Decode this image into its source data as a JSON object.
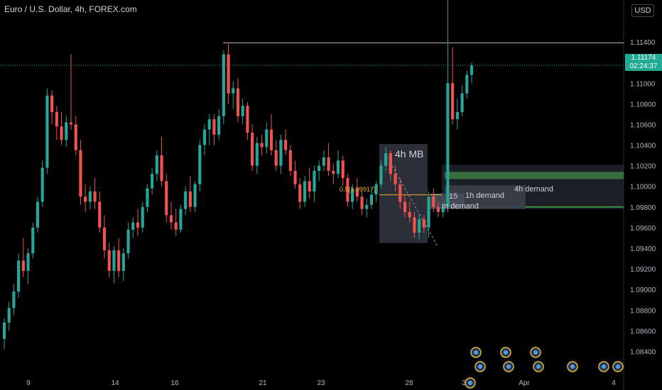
{
  "header": {
    "title": "Euro / U.S. Dollar, 4h, FOREX.com",
    "currency": "USD"
  },
  "last_price": {
    "value": "1.11174",
    "countdown": "02:24:37"
  },
  "colors": {
    "background": "#000000",
    "up": "#26a69a",
    "down": "#ef5350",
    "resistance": "#b2b5be",
    "mid_line": "#f0b429",
    "demand_4h": "#4caf50",
    "price_tag": "#22ab94"
  },
  "chart_data": {
    "type": "candlestick",
    "title": "Euro / U.S. Dollar, 4h, FOREX.com",
    "y_ticks": [
      "1.11400",
      "1.11000",
      "1.10800",
      "1.10600",
      "1.10400",
      "1.10200",
      "1.10000",
      "1.09800",
      "1.09600",
      "1.09400",
      "1.09200",
      "1.09000",
      "1.08800",
      "1.08600",
      "1.08400"
    ],
    "x_ticks": [
      "9",
      "14",
      "16",
      "21",
      "23",
      "28",
      "30",
      "Apr",
      "4"
    ],
    "ylim": [
      1.083,
      1.116
    ],
    "resistance_level": 1.1139,
    "annotations": [
      {
        "id": "mb",
        "text": "4h MB"
      },
      {
        "id": "fib",
        "text": "0.5(1.09917)"
      },
      {
        "id": "dem1h",
        "text": "1h demand"
      },
      {
        "id": "dem4h",
        "text": "4h demand"
      },
      {
        "id": "dem15",
        "text": "15"
      },
      {
        "id": "dem15b",
        "text": "m demand"
      }
    ],
    "ohlc": [
      [
        1.0852,
        1.0872,
        1.0842,
        1.0868
      ],
      [
        1.0868,
        1.0888,
        1.086,
        1.0882
      ],
      [
        1.0882,
        1.0905,
        1.0875,
        1.0898
      ],
      [
        1.0898,
        1.0935,
        1.0892,
        1.0928
      ],
      [
        1.0928,
        1.095,
        1.0912,
        1.0918
      ],
      [
        1.0918,
        1.094,
        1.0905,
        1.0935
      ],
      [
        1.0935,
        1.0965,
        1.093,
        1.096
      ],
      [
        1.096,
        1.099,
        1.0955,
        1.0985
      ],
      [
        1.0985,
        1.1025,
        1.098,
        1.1018
      ],
      [
        1.1018,
        1.1095,
        1.1012,
        1.1088
      ],
      [
        1.1088,
        1.1093,
        1.106,
        1.1072
      ],
      [
        1.1072,
        1.1078,
        1.1045,
        1.1058
      ],
      [
        1.1058,
        1.1072,
        1.104,
        1.1045
      ],
      [
        1.1045,
        1.1068,
        1.1038,
        1.1062
      ],
      [
        1.1062,
        1.1128,
        1.1055,
        1.106
      ],
      [
        1.106,
        1.1068,
        1.103,
        1.1035
      ],
      [
        1.1035,
        1.1045,
        1.0982,
        1.099
      ],
      [
        1.099,
        1.1002,
        1.0975,
        1.0985
      ],
      [
        1.0985,
        1.1,
        1.0978,
        1.0995
      ],
      [
        1.0995,
        1.1008,
        1.0978,
        1.0985
      ],
      [
        1.0985,
        1.0995,
        1.0955,
        1.096
      ],
      [
        1.096,
        1.0972,
        1.093,
        1.0938
      ],
      [
        1.0938,
        1.0945,
        1.0912,
        1.0918
      ],
      [
        1.0918,
        1.0942,
        1.0906,
        1.0938
      ],
      [
        1.0938,
        1.095,
        1.0912,
        1.0918
      ],
      [
        1.0918,
        1.094,
        1.0908,
        1.0935
      ],
      [
        1.0935,
        1.0965,
        1.093,
        1.0958
      ],
      [
        1.0958,
        1.097,
        1.095,
        1.0965
      ],
      [
        1.0965,
        1.0978,
        1.0952,
        1.096
      ],
      [
        1.096,
        1.0985,
        1.0955,
        1.098
      ],
      [
        1.098,
        1.1002,
        1.0975,
        1.0998
      ],
      [
        1.0998,
        1.1018,
        1.0992,
        1.1012
      ],
      [
        1.1012,
        1.1035,
        1.1005,
        1.103
      ],
      [
        1.103,
        1.1048,
        1.1,
        1.1005
      ],
      [
        1.1005,
        1.1012,
        1.0965,
        1.0972
      ],
      [
        1.0972,
        1.0985,
        1.0958,
        1.0965
      ],
      [
        1.0965,
        1.0978,
        1.0952,
        1.0958
      ],
      [
        1.0958,
        1.0982,
        1.0955,
        1.0978
      ],
      [
        1.0978,
        1.1,
        1.0972,
        1.0995
      ],
      [
        1.0995,
        1.101,
        1.0975,
        1.098
      ],
      [
        1.098,
        1.1005,
        1.0975,
        1.1002
      ],
      [
        1.1002,
        1.1045,
        1.0995,
        1.104
      ],
      [
        1.104,
        1.106,
        1.103,
        1.1055
      ],
      [
        1.1055,
        1.107,
        1.104,
        1.1065
      ],
      [
        1.1065,
        1.107,
        1.104,
        1.105
      ],
      [
        1.105,
        1.1075,
        1.1045,
        1.1068
      ],
      [
        1.1068,
        1.1132,
        1.106,
        1.1128
      ],
      [
        1.1128,
        1.1138,
        1.108,
        1.109
      ],
      [
        1.109,
        1.1102,
        1.1075,
        1.1095
      ],
      [
        1.1095,
        1.1105,
        1.1062,
        1.1068
      ],
      [
        1.1068,
        1.1085,
        1.106,
        1.1078
      ],
      [
        1.1078,
        1.1082,
        1.1045,
        1.1052
      ],
      [
        1.1052,
        1.106,
        1.1015,
        1.102
      ],
      [
        1.102,
        1.1048,
        1.1012,
        1.1042
      ],
      [
        1.1042,
        1.105,
        1.103,
        1.1038
      ],
      [
        1.1038,
        1.1062,
        1.1032,
        1.1055
      ],
      [
        1.1055,
        1.107,
        1.103,
        1.1035
      ],
      [
        1.1035,
        1.1045,
        1.1015,
        1.102
      ],
      [
        1.102,
        1.105,
        1.1012,
        1.1045
      ],
      [
        1.1045,
        1.1055,
        1.103,
        1.1035
      ],
      [
        1.1035,
        1.104,
        1.101,
        1.1015
      ],
      [
        1.1015,
        1.1025,
        1.0998,
        1.1002
      ],
      [
        1.1002,
        1.1008,
        1.0978,
        1.0985
      ],
      [
        1.0985,
        1.101,
        1.098,
        1.1005
      ],
      [
        1.1005,
        1.1018,
        1.0988,
        1.0995
      ],
      [
        1.0995,
        1.102,
        1.0985,
        1.1015
      ],
      [
        1.1015,
        1.1025,
        1.1005,
        1.102
      ],
      [
        1.102,
        1.1035,
        1.1015,
        1.1028
      ],
      [
        1.1028,
        1.1042,
        1.101,
        1.1015
      ],
      [
        1.1015,
        1.1022,
        1.1002,
        1.1012
      ],
      [
        1.1012,
        1.1035,
        1.1008,
        1.1025
      ],
      [
        1.1025,
        1.103,
        1.1,
        1.1008
      ],
      [
        1.1008,
        1.1012,
        1.098,
        1.0985
      ],
      [
        1.0985,
        1.1002,
        1.0978,
        1.0998
      ],
      [
        1.0998,
        1.1008,
        1.0985,
        1.099
      ],
      [
        1.099,
        1.0995,
        1.0972,
        1.0978
      ],
      [
        1.0978,
        1.0988,
        1.097,
        1.0982
      ],
      [
        1.0982,
        1.0998,
        1.0978,
        1.0992
      ],
      [
        1.0992,
        1.1005,
        1.0985,
        1.1002
      ],
      [
        1.1002,
        1.1025,
        1.0998,
        1.102
      ],
      [
        1.102,
        1.1038,
        1.1015,
        1.1032
      ],
      [
        1.1032,
        1.1035,
        1.1005,
        1.1012
      ],
      [
        1.1012,
        1.102,
        1.0995,
        1.1002
      ],
      [
        1.1002,
        1.1008,
        1.0978,
        1.0985
      ],
      [
        1.0985,
        1.0992,
        1.097,
        1.0975
      ],
      [
        1.0975,
        1.0985,
        1.0965,
        1.097
      ],
      [
        1.097,
        1.0975,
        1.095,
        1.0955
      ],
      [
        1.0955,
        1.0972,
        1.0948,
        1.0968
      ],
      [
        1.0968,
        1.0972,
        1.0955,
        1.096
      ],
      [
        1.096,
        1.0995,
        1.095,
        1.099
      ],
      [
        1.099,
        1.0998,
        1.0975,
        1.098
      ],
      [
        1.098,
        1.0985,
        1.097,
        1.0975
      ],
      [
        1.0975,
        1.0985,
        1.097,
        1.098
      ],
      [
        1.098,
        1.1185,
        1.0975,
        1.11
      ],
      [
        1.11,
        1.1135,
        1.106,
        1.1065
      ],
      [
        1.1065,
        1.1085,
        1.1055,
        1.1072
      ],
      [
        1.1072,
        1.1098,
        1.1068,
        1.109
      ],
      [
        1.109,
        1.1112,
        1.1085,
        1.1108
      ],
      [
        1.1108,
        1.112,
        1.11,
        1.1117
      ]
    ],
    "event_markers": 10
  }
}
